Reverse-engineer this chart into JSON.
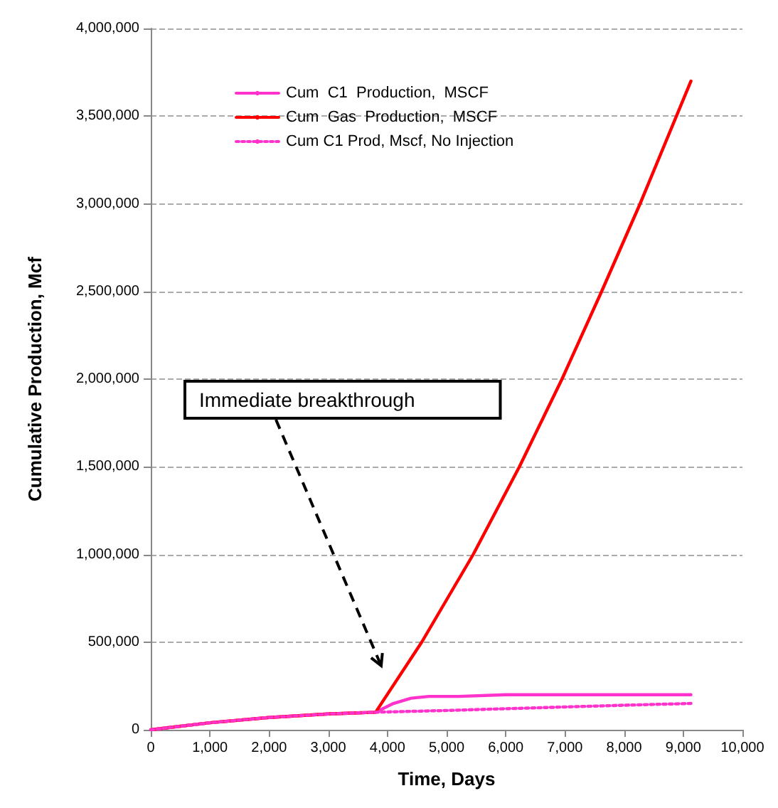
{
  "chart_data": {
    "type": "line",
    "xlabel": "Time, Days",
    "ylabel": "Cumulative Production, Mcf",
    "xlim": [
      0,
      10000
    ],
    "xticks": [
      0,
      {
        "value": 1000,
        "label": "1,000"
      },
      {
        "value": 2000,
        "label": "2,000"
      },
      {
        "value": 3000,
        "label": "3,000"
      },
      {
        "value": 4000,
        "label": "4,000"
      },
      {
        "value": 5000,
        "label": "5,000"
      },
      {
        "value": 6000,
        "label": "6,000"
      },
      {
        "value": 7000,
        "label": "7,000"
      },
      {
        "value": 8000,
        "label": "8,000"
      },
      {
        "value": 9000,
        "label": "9,000"
      },
      {
        "value": 10000,
        "label": "10,000"
      }
    ],
    "ylim": [
      0,
      4000000
    ],
    "yticks": [
      0,
      {
        "value": 500000,
        "label": "500,000"
      },
      {
        "value": 1000000,
        "label": "1,000,000"
      },
      {
        "value": 1500000,
        "label": "1,500,000"
      },
      {
        "value": 2000000,
        "label": "2,000,000"
      },
      {
        "value": 2500000,
        "label": "2,500,000"
      },
      {
        "value": 3000000,
        "label": "3,000,000"
      },
      {
        "value": 3500000,
        "label": "3,500,000"
      },
      {
        "value": 4000000,
        "label": "4,000,000"
      }
    ],
    "grid": "y",
    "legend": "top left",
    "marker": "none",
    "series": [
      {
        "name": "Cum  C1  Production,  MSCF",
        "color": "#ff33cc",
        "line_style": "solid",
        "x": [
          0,
          1000,
          2000,
          3000,
          3800,
          4100,
          4400,
          4700,
          5200,
          6000,
          7000,
          8000,
          9130
        ],
        "values": [
          0,
          40000,
          70000,
          90000,
          100000,
          150000,
          180000,
          190000,
          190000,
          200000,
          200000,
          200000,
          200000
        ]
      },
      {
        "name": "Cum  Gas  Production,  MSCF",
        "color": "#ff0000",
        "line_style": "solid",
        "x": [
          0,
          1000,
          2000,
          3000,
          3800,
          4580,
          5450,
          6230,
          6950,
          7620,
          8270,
          9130
        ],
        "values": [
          0,
          40000,
          70000,
          90000,
          100000,
          500000,
          1000000,
          1500000,
          2000000,
          2500000,
          3000000,
          3700000
        ]
      },
      {
        "name": "Cum C1 Prod, Mscf, No Injection",
        "color": "#ff33cc",
        "line_style": "dotted",
        "x": [
          0,
          1000,
          2000,
          3000,
          3800,
          5000,
          6000,
          7000,
          8000,
          9130
        ],
        "values": [
          0,
          40000,
          70000,
          90000,
          100000,
          110000,
          120000,
          130000,
          140000,
          150000
        ]
      }
    ],
    "annotations": [
      "Immediate breakthrough"
    ]
  }
}
